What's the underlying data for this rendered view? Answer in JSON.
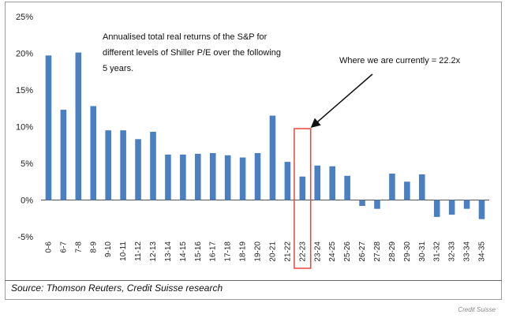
{
  "chart_data": {
    "type": "bar",
    "categories": [
      "0-6",
      "6-7",
      "7-8",
      "8-9",
      "9-10",
      "10-11",
      "11-12",
      "12-13",
      "13-14",
      "14-15",
      "15-16",
      "16-17",
      "17-18",
      "18-19",
      "19-20",
      "20-21",
      "21-22",
      "22-23",
      "23-24",
      "24-25",
      "25-26",
      "26-27",
      "27-28",
      "28-29",
      "29-30",
      "30-31",
      "31-32",
      "32-33",
      "33-34",
      "34-35"
    ],
    "values": [
      19.7,
      12.3,
      20.1,
      12.8,
      9.5,
      9.5,
      8.3,
      9.3,
      6.2,
      6.2,
      6.3,
      6.4,
      6.1,
      5.8,
      6.4,
      11.5,
      5.2,
      3.2,
      4.7,
      4.6,
      3.3,
      -0.8,
      -1.2,
      3.6,
      2.5,
      3.5,
      -2.3,
      -2.0,
      -1.2,
      -2.6
    ],
    "yticks": [
      "25%",
      "20%",
      "15%",
      "10%",
      "5%",
      "0%",
      "-5%"
    ],
    "ylim": [
      -5,
      25
    ],
    "highlight_category": "22-23",
    "bar_color": "#4a7fc1",
    "highlight_color": "#e8473c",
    "annotation_main": [
      "Annualised total real returns of the S&P for",
      "different levels of Shiller P/E over the following",
      "5 years."
    ],
    "annotation_arrow": "Where we are currently = 22.2x"
  },
  "source": "Source: Thomson Reuters, Credit Suisse research",
  "credit": "Credit Suisse"
}
